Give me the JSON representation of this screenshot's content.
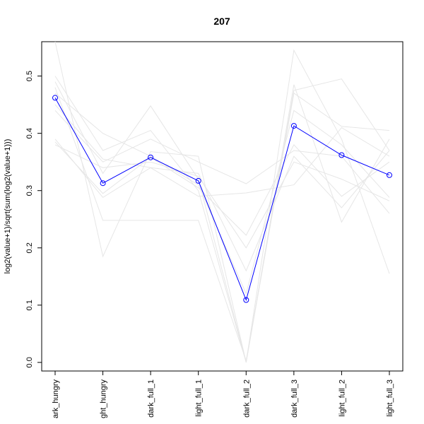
{
  "chart_data": {
    "type": "line",
    "title": "207",
    "xlabel": "",
    "ylabel": "log2(value+1)/sqrt(sum(log2(value+1)))",
    "categories": [
      "dark_hungry",
      "light_hungry",
      "dark_full_1",
      "light_full_1",
      "dark_full_2",
      "dark_full_3",
      "light_full_2",
      "light_full_3"
    ],
    "visible_category_labels": [
      "ark_hungry",
      "ght_hungry",
      "dark_full_1",
      "light_full_1",
      "dark_full_2",
      "dark_full_3",
      "light_full_2",
      "light_full_3"
    ],
    "ylim": [
      -0.015,
      0.56
    ],
    "yticks": [
      0.0,
      0.1,
      0.2,
      0.3,
      0.4,
      0.5
    ],
    "ytick_labels": [
      "0.0",
      "0.1",
      "0.2",
      "0.3",
      "0.4",
      "0.5"
    ],
    "grid": false,
    "highlight_series": {
      "color": "#0000ff",
      "marker": "open-circle",
      "values": [
        0.462,
        0.313,
        0.358,
        0.317,
        0.109,
        0.413,
        0.362,
        0.327
      ]
    },
    "background_series_color": "#e6e6e6",
    "background_series": [
      [
        0.56,
        0.185,
        0.368,
        0.36,
        0.0,
        0.545,
        0.39,
        0.155
      ],
      [
        0.5,
        0.37,
        0.405,
        0.3,
        0.0,
        0.475,
        0.495,
        0.37
      ],
      [
        0.48,
        0.248,
        0.248,
        0.248,
        0.003,
        0.47,
        0.412,
        0.405
      ],
      [
        0.49,
        0.33,
        0.448,
        0.32,
        0.0,
        0.485,
        0.245,
        0.39
      ],
      [
        0.44,
        0.35,
        0.39,
        0.35,
        0.312,
        0.37,
        0.36,
        0.26
      ],
      [
        0.39,
        0.288,
        0.34,
        0.29,
        0.296,
        0.31,
        0.41,
        0.36
      ],
      [
        0.385,
        0.295,
        0.358,
        0.305,
        0.222,
        0.38,
        0.29,
        0.35
      ],
      [
        0.45,
        0.355,
        0.34,
        0.33,
        0.16,
        0.36,
        0.27,
        0.37
      ],
      [
        0.38,
        0.34,
        0.35,
        0.325,
        0.2,
        0.35,
        0.32,
        0.282
      ],
      [
        0.47,
        0.4,
        0.36,
        0.31,
        0.12,
        0.44,
        0.38,
        0.288
      ]
    ]
  }
}
